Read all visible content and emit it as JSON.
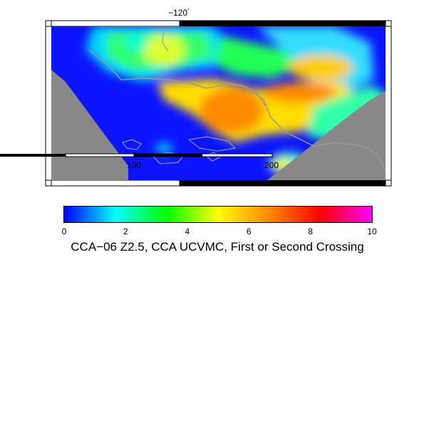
{
  "map": {
    "lon_label": "−120",
    "degree_symbol": "°",
    "scale_labels": [
      "100",
      "200"
    ]
  },
  "colorbar": {
    "ticks": [
      "0",
      "2",
      "4",
      "6",
      "8",
      "10"
    ],
    "title": "CCA−06 Z2.5, CCA UCVMC, First or Second Crossing",
    "colors": [
      "#0000ff",
      "#00ffff",
      "#00ff00",
      "#ffff00",
      "#ff8800",
      "#ff0000",
      "#ff00ff"
    ]
  }
}
